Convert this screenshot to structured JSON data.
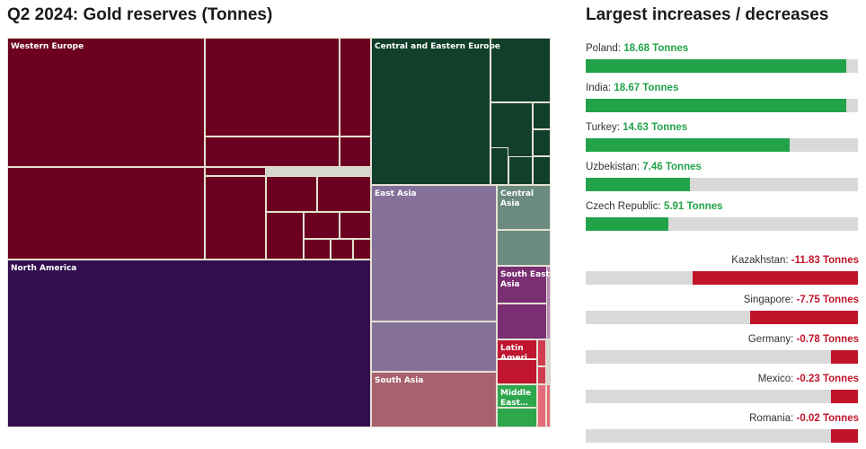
{
  "treemap_title": "Q2 2024: Gold reserves (Tonnes)",
  "changes_title": "Largest increases / decreases",
  "colors": {
    "increase": "#22a34a",
    "decrease": "#c0142a",
    "track": "#d9d9d9"
  },
  "chart_data": [
    {
      "type": "treemap",
      "title": "Q2 2024: Gold reserves (Tonnes)",
      "regions": [
        {
          "name": "Western Europe",
          "color": "#6b0020"
        },
        {
          "name": "North America",
          "color": "#330f4f"
        },
        {
          "name": "Central and Eastern Europe",
          "color": "#123f2c"
        },
        {
          "name": "East Asia",
          "color": "#857099"
        },
        {
          "name": "Central Asia",
          "color": "#6c8b80"
        },
        {
          "name": "South East Asia",
          "color": "#7a2f73"
        },
        {
          "name": "Latin America",
          "color": "#bf1530"
        },
        {
          "name": "South Asia",
          "color": "#a8626e"
        },
        {
          "name": "Middle East",
          "color": "#2da64c"
        }
      ]
    },
    {
      "type": "bar",
      "title": "Largest increases / decreases",
      "unit": "Tonnes",
      "max_abs": 19.5,
      "items": [
        {
          "country": "Poland",
          "value": 18.68,
          "label": "18.68 Tonnes"
        },
        {
          "country": "India",
          "value": 18.67,
          "label": "18.67 Tonnes"
        },
        {
          "country": "Turkey",
          "value": 14.63,
          "label": "14.63 Tonnes"
        },
        {
          "country": "Uzbekistan",
          "value": 7.46,
          "label": "7.46 Tonnes"
        },
        {
          "country": "Czech Republic",
          "value": 5.91,
          "label": "5.91 Tonnes"
        },
        {
          "country": "Kazakhstan",
          "value": -11.83,
          "label": "-11.83 Tonnes"
        },
        {
          "country": "Singapore",
          "value": -7.75,
          "label": "-7.75 Tonnes"
        },
        {
          "country": "Germany",
          "value": -0.78,
          "label": "-0.78 Tonnes"
        },
        {
          "country": "Mexico",
          "value": -0.23,
          "label": "-0.23 Tonnes"
        },
        {
          "country": "Romania",
          "value": -0.02,
          "label": "-0.02 Tonnes"
        }
      ]
    }
  ]
}
